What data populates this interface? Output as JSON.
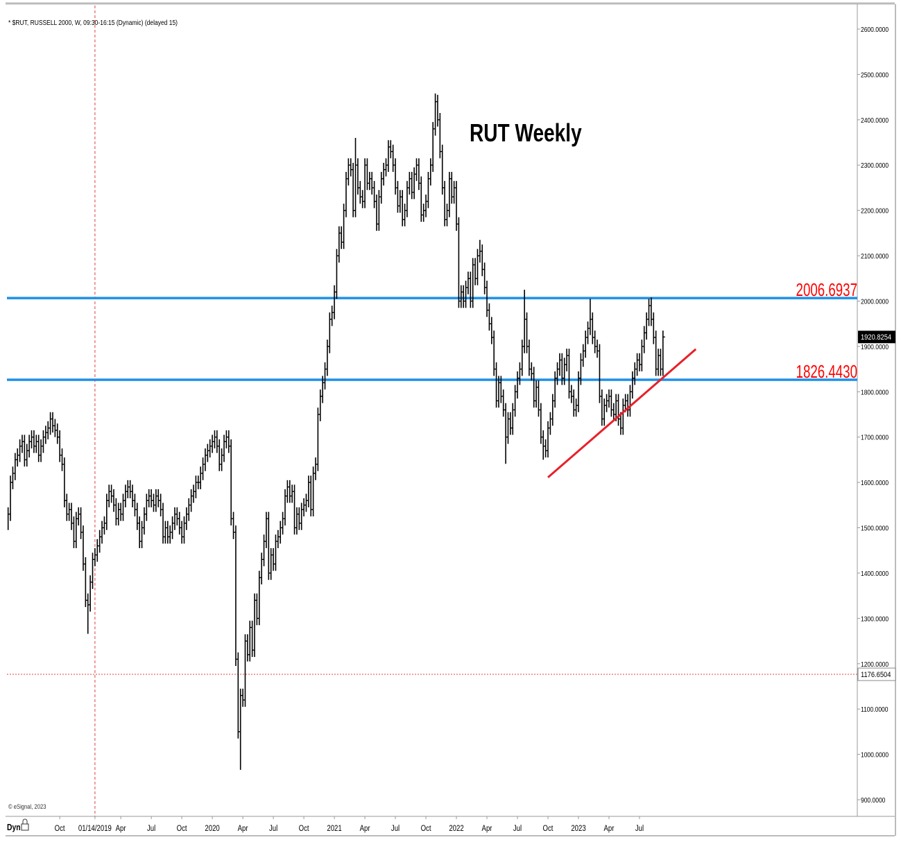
{
  "chart_data": {
    "type": "ohlc",
    "title": "* $RUT, RUSSELL 2000, W, 09:30-16:15 (Dynamic) (delayed 15)",
    "annotation": "RUT Weekly",
    "copyright": "© eSignal, 2023",
    "mode_label": "Dyn",
    "color": "#000000",
    "xlim": [
      -35.5,
      326.5
    ],
    "ylim": [
      900,
      2600
    ],
    "yticks": [
      {
        "value": 900,
        "label": "900.0000"
      },
      {
        "value": 1000,
        "label": "1000.0000"
      },
      {
        "value": 1100,
        "label": "1100.0000"
      },
      {
        "value": 1200,
        "label": "1200.0000"
      },
      {
        "value": 1300,
        "label": "1300.0000"
      },
      {
        "value": 1400,
        "label": "1400.0000"
      },
      {
        "value": 1500,
        "label": "1500.0000"
      },
      {
        "value": 1600,
        "label": "1600.0000"
      },
      {
        "value": 1700,
        "label": "1700.0000"
      },
      {
        "value": 1800,
        "label": "1800.0000"
      },
      {
        "value": 1900,
        "label": "1900.0000"
      },
      {
        "value": 2000,
        "label": "2000.0000"
      },
      {
        "value": 2100,
        "label": "2100.0000"
      },
      {
        "value": 2200,
        "label": "2200.0000"
      },
      {
        "value": 2300,
        "label": "2300.0000"
      },
      {
        "value": 2400,
        "label": "2400.0000"
      },
      {
        "value": 2500,
        "label": "2500.0000"
      },
      {
        "value": 2600,
        "label": "2600.0000"
      }
    ],
    "xticks": [
      {
        "value": -13,
        "label": "Oct"
      },
      {
        "value": 2,
        "label": "01/14/2019"
      },
      {
        "value": 13,
        "label": "Apr"
      },
      {
        "value": 26,
        "label": "Jul"
      },
      {
        "value": 39,
        "label": "Oct"
      },
      {
        "value": 52,
        "label": "2020"
      },
      {
        "value": 65,
        "label": "Apr"
      },
      {
        "value": 78,
        "label": "Jul"
      },
      {
        "value": 91,
        "label": "Oct"
      },
      {
        "value": 104,
        "label": "2021"
      },
      {
        "value": 117,
        "label": "Apr"
      },
      {
        "value": 130,
        "label": "Jul"
      },
      {
        "value": 143,
        "label": "Oct"
      },
      {
        "value": 156,
        "label": "2022"
      },
      {
        "value": 169,
        "label": "Apr"
      },
      {
        "value": 182,
        "label": "Jul"
      },
      {
        "value": 195,
        "label": "Oct"
      },
      {
        "value": 208,
        "label": "2023"
      },
      {
        "value": 221,
        "label": "Apr"
      },
      {
        "value": 234,
        "label": "Jul"
      }
    ],
    "levels": [
      2006.6937,
      {
        "value": 1826.443,
        "label": "1826.4430"
      }
    ],
    "level_color": "#1e90e6",
    "level_label_color": "#ff0000",
    "crosshair": {
      "x": 2,
      "y": 1176.6504
    },
    "trendline": [
      [
        195,
        1611
      ],
      [
        258,
        1894
      ]
    ],
    "trendline_color": "#e8202a",
    "bars": [
      [
        1545,
        1495,
        1530
      ],
      [
        1615,
        1515,
        1600
      ],
      [
        1635,
        1585,
        1620
      ],
      [
        1665,
        1605,
        1650
      ],
      [
        1675,
        1635,
        1660
      ],
      [
        1695,
        1645,
        1680
      ],
      [
        1705,
        1665,
        1690
      ],
      [
        1705,
        1635,
        1650
      ],
      [
        1685,
        1635,
        1670
      ],
      [
        1705,
        1655,
        1690
      ],
      [
        1715,
        1675,
        1700
      ],
      [
        1715,
        1665,
        1680
      ],
      [
        1705,
        1665,
        1690
      ],
      [
        1705,
        1645,
        1660
      ],
      [
        1695,
        1645,
        1680
      ],
      [
        1715,
        1665,
        1700
      ],
      [
        1725,
        1685,
        1710
      ],
      [
        1735,
        1695,
        1720
      ],
      [
        1755,
        1705,
        1740
      ],
      [
        1755,
        1710,
        1725
      ],
      [
        1740,
        1700,
        1715
      ],
      [
        1730,
        1685,
        1700
      ],
      [
        1715,
        1645,
        1660
      ],
      [
        1675,
        1625,
        1640
      ],
      [
        1655,
        1545,
        1560
      ],
      [
        1575,
        1515,
        1530
      ],
      [
        1555,
        1515,
        1540
      ],
      [
        1555,
        1495,
        1510
      ],
      [
        1525,
        1455,
        1470
      ],
      [
        1535,
        1455,
        1520
      ],
      [
        1545,
        1505,
        1530
      ],
      [
        1545,
        1475,
        1490
      ],
      [
        1505,
        1405,
        1420
      ],
      [
        1435,
        1325,
        1340
      ],
      [
        1355,
        1266,
        1330
      ],
      [
        1395,
        1315,
        1380
      ],
      [
        1445,
        1365,
        1430
      ],
      [
        1455,
        1415,
        1440
      ],
      [
        1475,
        1425,
        1460
      ],
      [
        1495,
        1445,
        1480
      ],
      [
        1515,
        1465,
        1500
      ],
      [
        1525,
        1485,
        1510
      ],
      [
        1575,
        1495,
        1560
      ],
      [
        1595,
        1545,
        1580
      ],
      [
        1595,
        1555,
        1570
      ],
      [
        1585,
        1535,
        1550
      ],
      [
        1565,
        1505,
        1520
      ],
      [
        1555,
        1505,
        1540
      ],
      [
        1555,
        1515,
        1530
      ],
      [
        1575,
        1515,
        1560
      ],
      [
        1595,
        1545,
        1580
      ],
      [
        1605,
        1565,
        1590
      ],
      [
        1605,
        1565,
        1580
      ],
      [
        1595,
        1545,
        1560
      ],
      [
        1575,
        1525,
        1540
      ],
      [
        1555,
        1495,
        1510
      ],
      [
        1525,
        1455,
        1470
      ],
      [
        1515,
        1455,
        1500
      ],
      [
        1545,
        1485,
        1530
      ],
      [
        1575,
        1515,
        1560
      ],
      [
        1585,
        1545,
        1570
      ],
      [
        1585,
        1545,
        1560
      ],
      [
        1575,
        1535,
        1550
      ],
      [
        1585,
        1535,
        1570
      ],
      [
        1585,
        1545,
        1560
      ],
      [
        1575,
        1525,
        1540
      ],
      [
        1555,
        1465,
        1480
      ],
      [
        1515,
        1465,
        1500
      ],
      [
        1515,
        1465,
        1480
      ],
      [
        1505,
        1465,
        1490
      ],
      [
        1525,
        1475,
        1510
      ],
      [
        1545,
        1495,
        1530
      ],
      [
        1545,
        1505,
        1520
      ],
      [
        1535,
        1485,
        1500
      ],
      [
        1515,
        1465,
        1480
      ],
      [
        1525,
        1465,
        1510
      ],
      [
        1545,
        1495,
        1530
      ],
      [
        1565,
        1515,
        1550
      ],
      [
        1585,
        1535,
        1570
      ],
      [
        1595,
        1555,
        1580
      ],
      [
        1615,
        1565,
        1600
      ],
      [
        1615,
        1585,
        1600
      ],
      [
        1635,
        1585,
        1620
      ],
      [
        1655,
        1605,
        1640
      ],
      [
        1675,
        1625,
        1660
      ],
      [
        1685,
        1645,
        1670
      ],
      [
        1695,
        1655,
        1680
      ],
      [
        1705,
        1665,
        1690
      ],
      [
        1715,
        1675,
        1700
      ],
      [
        1715,
        1665,
        1680
      ],
      [
        1695,
        1625,
        1640
      ],
      [
        1675,
        1625,
        1660
      ],
      [
        1705,
        1645,
        1690
      ],
      [
        1715,
        1675,
        1700
      ],
      [
        1715,
        1665,
        1680
      ],
      [
        1695,
        1505,
        1520
      ],
      [
        1535,
        1475,
        1490
      ],
      [
        1505,
        1195,
        1210
      ],
      [
        1225,
        1035,
        1050
      ],
      [
        1145,
        966,
        1130
      ],
      [
        1145,
        1105,
        1120
      ],
      [
        1265,
        1105,
        1250
      ],
      [
        1265,
        1205,
        1220
      ],
      [
        1295,
        1205,
        1280
      ],
      [
        1295,
        1215,
        1230
      ],
      [
        1355,
        1215,
        1340
      ],
      [
        1355,
        1285,
        1300
      ],
      [
        1405,
        1285,
        1390
      ],
      [
        1445,
        1375,
        1430
      ],
      [
        1485,
        1415,
        1470
      ],
      [
        1535,
        1455,
        1520
      ],
      [
        1535,
        1385,
        1400
      ],
      [
        1455,
        1385,
        1440
      ],
      [
        1455,
        1405,
        1420
      ],
      [
        1485,
        1405,
        1470
      ],
      [
        1495,
        1455,
        1480
      ],
      [
        1515,
        1465,
        1500
      ],
      [
        1535,
        1485,
        1520
      ],
      [
        1585,
        1505,
        1570
      ],
      [
        1605,
        1555,
        1590
      ],
      [
        1605,
        1555,
        1570
      ],
      [
        1595,
        1555,
        1580
      ],
      [
        1595,
        1485,
        1500
      ],
      [
        1545,
        1485,
        1530
      ],
      [
        1545,
        1495,
        1510
      ],
      [
        1555,
        1495,
        1540
      ],
      [
        1565,
        1525,
        1550
      ],
      [
        1575,
        1535,
        1560
      ],
      [
        1615,
        1545,
        1600
      ],
      [
        1615,
        1525,
        1540
      ],
      [
        1635,
        1525,
        1620
      ],
      [
        1655,
        1605,
        1640
      ],
      [
        1765,
        1625,
        1750
      ],
      [
        1805,
        1735,
        1790
      ],
      [
        1835,
        1775,
        1820
      ],
      [
        1865,
        1805,
        1850
      ],
      [
        1915,
        1835,
        1900
      ],
      [
        1975,
        1885,
        1960
      ],
      [
        1990,
        1945,
        1975
      ],
      [
        2035,
        1960,
        2020
      ],
      [
        2115,
        2005,
        2100
      ],
      [
        2165,
        2085,
        2150
      ],
      [
        2165,
        2115,
        2130
      ],
      [
        2215,
        2115,
        2200
      ],
      [
        2285,
        2185,
        2270
      ],
      [
        2315,
        2255,
        2300
      ],
      [
        2315,
        2275,
        2290
      ],
      [
        2305,
        2185,
        2200
      ],
      [
        2360,
        2185,
        2300
      ],
      [
        2315,
        2235,
        2250
      ],
      [
        2265,
        2215,
        2230
      ],
      [
        2245,
        2205,
        2220
      ],
      [
        2315,
        2205,
        2300
      ],
      [
        2315,
        2245,
        2260
      ],
      [
        2285,
        2245,
        2270
      ],
      [
        2285,
        2235,
        2250
      ],
      [
        2265,
        2205,
        2220
      ],
      [
        2235,
        2155,
        2170
      ],
      [
        2245,
        2155,
        2230
      ],
      [
        2285,
        2215,
        2270
      ],
      [
        2305,
        2255,
        2290
      ],
      [
        2315,
        2275,
        2300
      ],
      [
        2355,
        2285,
        2340
      ],
      [
        2355,
        2315,
        2330
      ],
      [
        2345,
        2285,
        2300
      ],
      [
        2315,
        2235,
        2250
      ],
      [
        2265,
        2195,
        2210
      ],
      [
        2245,
        2195,
        2230
      ],
      [
        2245,
        2165,
        2180
      ],
      [
        2215,
        2165,
        2200
      ],
      [
        2265,
        2185,
        2250
      ],
      [
        2285,
        2235,
        2270
      ],
      [
        2285,
        2225,
        2240
      ],
      [
        2295,
        2225,
        2280
      ],
      [
        2315,
        2265,
        2300
      ],
      [
        2315,
        2245,
        2260
      ],
      [
        2275,
        2175,
        2190
      ],
      [
        2215,
        2175,
        2200
      ],
      [
        2235,
        2185,
        2220
      ],
      [
        2285,
        2205,
        2270
      ],
      [
        2315,
        2255,
        2300
      ],
      [
        2395,
        2285,
        2380
      ],
      [
        2458,
        2365,
        2440
      ],
      [
        2455,
        2385,
        2400
      ],
      [
        2415,
        2315,
        2330
      ],
      [
        2345,
        2235,
        2250
      ],
      [
        2265,
        2165,
        2180
      ],
      [
        2215,
        2165,
        2200
      ],
      [
        2285,
        2185,
        2270
      ],
      [
        2285,
        2215,
        2230
      ],
      [
        2265,
        2215,
        2250
      ],
      [
        2265,
        2155,
        2170
      ],
      [
        2185,
        1985,
        2000
      ],
      [
        2035,
        1985,
        2020
      ],
      [
        2035,
        1985,
        2000
      ],
      [
        2045,
        1985,
        2030
      ],
      [
        2065,
        2015,
        2050
      ],
      [
        2065,
        1985,
        2000
      ],
      [
        2095,
        1985,
        2080
      ],
      [
        2095,
        2035,
        2050
      ],
      [
        2115,
        2035,
        2100
      ],
      [
        2135,
        2085,
        2110
      ],
      [
        2125,
        2055,
        2070
      ],
      [
        2085,
        2015,
        2030
      ],
      [
        2045,
        1965,
        1980
      ],
      [
        1995,
        1935,
        1950
      ],
      [
        1965,
        1905,
        1920
      ],
      [
        1935,
        1835,
        1850
      ],
      [
        1865,
        1765,
        1780
      ],
      [
        1835,
        1765,
        1820
      ],
      [
        1835,
        1775,
        1790
      ],
      [
        1805,
        1745,
        1760
      ],
      [
        1775,
        1641,
        1700
      ],
      [
        1755,
        1685,
        1740
      ],
      [
        1755,
        1705,
        1720
      ],
      [
        1775,
        1705,
        1760
      ],
      [
        1815,
        1745,
        1800
      ],
      [
        1845,
        1785,
        1830
      ],
      [
        1865,
        1815,
        1850
      ],
      [
        1915,
        1835,
        1900
      ],
      [
        2025,
        1885,
        1960
      ],
      [
        1975,
        1885,
        1900
      ],
      [
        1915,
        1835,
        1850
      ],
      [
        1865,
        1825,
        1840
      ],
      [
        1855,
        1765,
        1780
      ],
      [
        1825,
        1765,
        1810
      ],
      [
        1825,
        1745,
        1760
      ],
      [
        1775,
        1685,
        1700
      ],
      [
        1715,
        1650,
        1680
      ],
      [
        1695,
        1655,
        1670
      ],
      [
        1735,
        1655,
        1720
      ],
      [
        1755,
        1705,
        1740
      ],
      [
        1795,
        1725,
        1780
      ],
      [
        1845,
        1765,
        1830
      ],
      [
        1865,
        1815,
        1850
      ],
      [
        1885,
        1835,
        1870
      ],
      [
        1885,
        1815,
        1830
      ],
      [
        1875,
        1815,
        1860
      ],
      [
        1895,
        1845,
        1880
      ],
      [
        1895,
        1785,
        1800
      ],
      [
        1815,
        1775,
        1790
      ],
      [
        1805,
        1745,
        1760
      ],
      [
        1785,
        1745,
        1770
      ],
      [
        1845,
        1755,
        1830
      ],
      [
        1885,
        1815,
        1870
      ],
      [
        1905,
        1855,
        1890
      ],
      [
        1935,
        1875,
        1920
      ],
      [
        1955,
        1905,
        1940
      ],
      [
        2005,
        1925,
        1960
      ],
      [
        1975,
        1905,
        1920
      ],
      [
        1935,
        1885,
        1900
      ],
      [
        1915,
        1875,
        1890
      ],
      [
        1905,
        1775,
        1790
      ],
      [
        1805,
        1725,
        1740
      ],
      [
        1785,
        1725,
        1770
      ],
      [
        1795,
        1755,
        1780
      ],
      [
        1805,
        1765,
        1790
      ],
      [
        1805,
        1745,
        1760
      ],
      [
        1775,
        1735,
        1750
      ],
      [
        1795,
        1735,
        1780
      ],
      [
        1795,
        1725,
        1740
      ],
      [
        1755,
        1705,
        1720
      ],
      [
        1785,
        1705,
        1770
      ],
      [
        1795,
        1755,
        1780
      ],
      [
        1795,
        1745,
        1760
      ],
      [
        1815,
        1745,
        1800
      ],
      [
        1845,
        1785,
        1830
      ],
      [
        1865,
        1815,
        1850
      ],
      [
        1885,
        1835,
        1870
      ],
      [
        1885,
        1845,
        1860
      ],
      [
        1915,
        1845,
        1900
      ],
      [
        1945,
        1885,
        1930
      ],
      [
        1975,
        1915,
        1960
      ],
      [
        2005,
        1945,
        1990
      ],
      [
        2008,
        1945,
        1960
      ],
      [
        1975,
        1905,
        1920
      ],
      [
        1935,
        1835,
        1850
      ],
      [
        1895,
        1835,
        1880
      ],
      [
        1895,
        1835,
        1850
      ],
      [
        1935,
        1835,
        1920.8254
      ]
    ]
  }
}
